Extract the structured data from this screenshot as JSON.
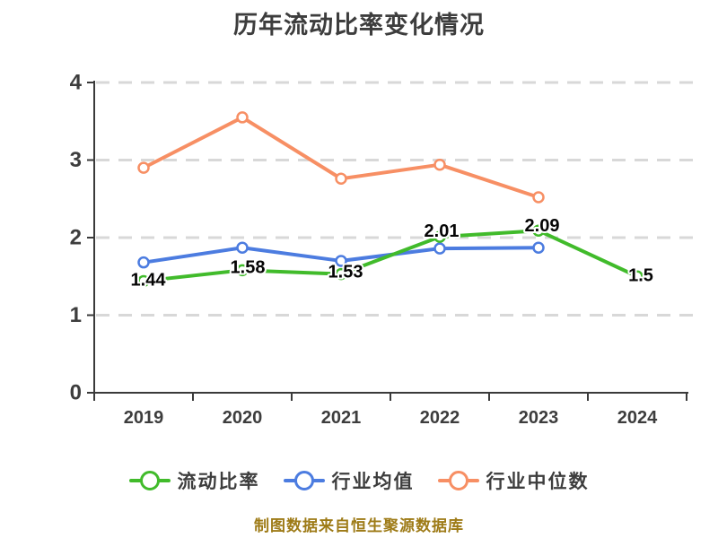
{
  "footer": "制图数据来自恒生聚源数据库",
  "colors": {
    "green": "#41bb2b",
    "blue": "#4c7ce0",
    "orange": "#f78f64",
    "axis_line": "#3a3a3a",
    "axis_text": "#3d3d3d",
    "grid_line": "#d8d8d8",
    "data_label": "#050505",
    "title_text": "#3d3d3d",
    "footer_text": "#9e7b17"
  },
  "chart_data": {
    "type": "line",
    "title": "历年流动比率变化情况",
    "categories": [
      "2019",
      "2020",
      "2021",
      "2022",
      "2023",
      "2024"
    ],
    "ylim": [
      0,
      4
    ],
    "yticks": [
      0,
      1,
      2,
      3,
      4
    ],
    "grid": "horizontal-dashed",
    "legend_position": "bottom",
    "marker": "hollow-circle",
    "series": [
      {
        "id": "current-ratio",
        "name": "流动比率",
        "color": "#41bb2b",
        "values": [
          1.44,
          1.58,
          1.53,
          2.01,
          2.09,
          1.5
        ],
        "labels": [
          "1.44",
          "1.58",
          "1.53",
          "2.01",
          "2.09",
          "1.5"
        ]
      },
      {
        "id": "industry-average",
        "name": "行业均值",
        "color": "#4c7ce0",
        "values": [
          1.68,
          1.87,
          1.7,
          1.86,
          1.87,
          null
        ],
        "labels": null
      },
      {
        "id": "industry-median",
        "name": "行业中位数",
        "color": "#f78f64",
        "values": [
          2.9,
          3.55,
          2.76,
          2.94,
          2.52,
          null
        ],
        "labels": null
      }
    ]
  },
  "legend": {
    "items": [
      {
        "id": "current-ratio",
        "label": "流动比率",
        "color": "#41bb2b"
      },
      {
        "id": "industry-average",
        "label": "行业均值",
        "color": "#4c7ce0"
      },
      {
        "id": "industry-median",
        "label": "行业中位数",
        "color": "#f78f64"
      }
    ]
  }
}
